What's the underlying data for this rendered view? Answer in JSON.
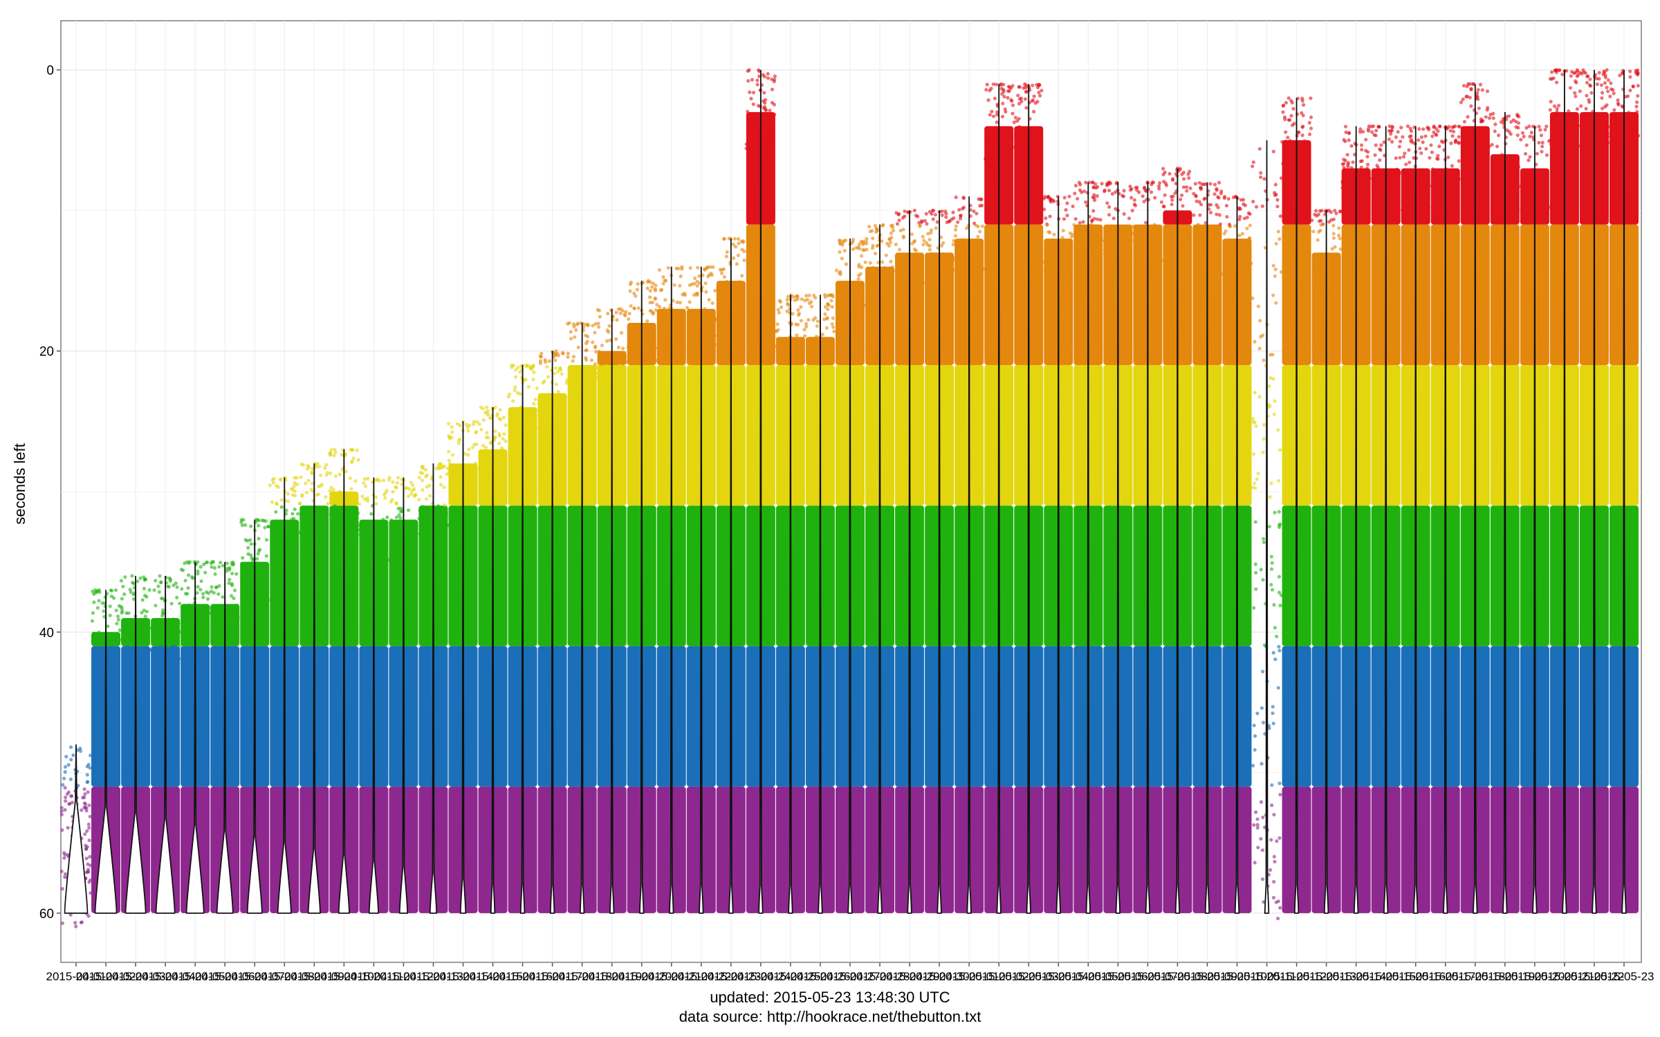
{
  "chart_data": {
    "type": "scatter",
    "title": "",
    "ylabel": "seconds left",
    "xlabel": "",
    "y_reversed": true,
    "ylim": [
      -3.5,
      63.5
    ],
    "y_ticks": [
      0,
      20,
      40,
      60
    ],
    "grid": true,
    "x_tick_labels": [
      "2015-04-01",
      "2015-04-02",
      "2015-04-03",
      "2015-04-04",
      "2015-04-05",
      "2015-04-06",
      "2015-04-07",
      "2015-04-08",
      "2015-04-09",
      "2015-04-10",
      "2015-04-11",
      "2015-04-12",
      "2015-04-13",
      "2015-04-14",
      "2015-04-15",
      "2015-04-16",
      "2015-04-17",
      "2015-04-18",
      "2015-04-19",
      "2015-04-20",
      "2015-04-21",
      "2015-04-22",
      "2015-04-23",
      "2015-04-24",
      "2015-04-25",
      "2015-04-26",
      "2015-04-27",
      "2015-04-28",
      "2015-04-29",
      "2015-04-30",
      "2015-05-01",
      "2015-05-02",
      "2015-05-03",
      "2015-05-04",
      "2015-05-05",
      "2015-05-06",
      "2015-05-07",
      "2015-05-08",
      "2015-05-09",
      "2015-05-10",
      "2015-05-11",
      "2015-05-12",
      "2015-05-13",
      "2015-05-14",
      "2015-05-15",
      "2015-05-16",
      "2015-05-17",
      "2015-05-18",
      "2015-05-19",
      "2015-05-20",
      "2015-05-21",
      "2015-05-22",
      "2015-05-23"
    ],
    "bands": [
      {
        "color": "#8e288e",
        "min": 51,
        "max": 60
      },
      {
        "color": "#1a6fb8",
        "min": 41,
        "max": 51
      },
      {
        "color": "#1fb20f",
        "min": 31,
        "max": 41
      },
      {
        "color": "#e3d60f",
        "min": 21,
        "max": 31
      },
      {
        "color": "#e4870d",
        "min": 11,
        "max": 21
      },
      {
        "color": "#e0121a",
        "min": 0,
        "max": 11
      }
    ],
    "daily_min_seconds_left": [
      48,
      37,
      36,
      36,
      35,
      35,
      32,
      29,
      28,
      27,
      29,
      29,
      28,
      25,
      24,
      21,
      20,
      18,
      17,
      15,
      14,
      14,
      12,
      0,
      16,
      16,
      12,
      11,
      10,
      10,
      9,
      1,
      1,
      9,
      8,
      8,
      8,
      7,
      8,
      9,
      5,
      2,
      10,
      4,
      4,
      4,
      4,
      1,
      3,
      4,
      0,
      0,
      0
    ],
    "sparse_days": [
      0,
      40
    ],
    "gap_after_day": 40
  },
  "captions": {
    "updated": "updated: 2015-05-23 13:48:30 UTC",
    "source": "data source: http://hookrace.net/thebutton.txt"
  }
}
